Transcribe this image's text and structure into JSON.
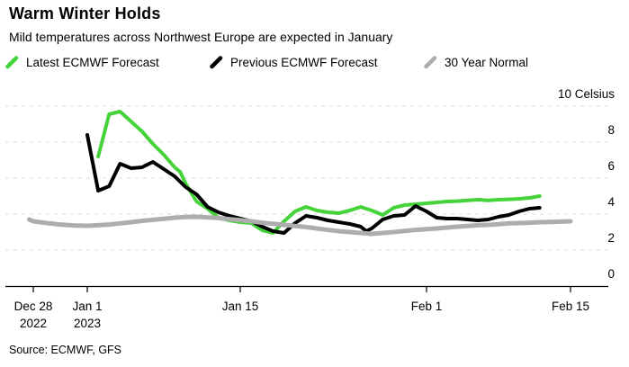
{
  "header": {
    "title": "Warm Winter Holds",
    "subtitle": "Mild temperatures across Northwest Europe are expected in January"
  },
  "legend": {
    "items": [
      {
        "label": "Latest ECMWF Forecast",
        "color": "#45d33a"
      },
      {
        "label": "Previous ECMWF Forecast",
        "color": "#000000"
      },
      {
        "label": "30 Year Normal",
        "color": "#adadad"
      }
    ]
  },
  "footer": {
    "source": "Source: ECMWF, GFS"
  },
  "chart_data": {
    "type": "line",
    "title": "Warm Winter Holds",
    "subtitle": "Mild temperatures across Northwest Europe are expected in January",
    "ylabel": "Celsius",
    "ylim": [
      0,
      10
    ],
    "grid": "horizontal-dashed",
    "legend_position": "top-left",
    "yticks": [
      {
        "value": 10,
        "label": "10 Celsius"
      },
      {
        "value": 8,
        "label": "8"
      },
      {
        "value": 6,
        "label": "6"
      },
      {
        "value": 4,
        "label": "4"
      },
      {
        "value": 2,
        "label": "2"
      },
      {
        "value": 0,
        "label": "0"
      }
    ],
    "x_unit": "days since Dec 28 2022",
    "xticks": [
      {
        "day": 0,
        "label": "Dec 28",
        "sublabel": "2022"
      },
      {
        "day": 4,
        "label": "Jan 1",
        "sublabel": "2023"
      },
      {
        "day": 18,
        "label": "Jan 15"
      },
      {
        "day": 35,
        "label": "Feb 1"
      },
      {
        "day": 49,
        "label": "Feb 15"
      }
    ],
    "series": [
      {
        "name": "Latest ECMWF Forecast",
        "color": "#45d33a",
        "width": 4,
        "points": [
          [
            5,
            7.2
          ],
          [
            6,
            9.55
          ],
          [
            7,
            9.7
          ],
          [
            8,
            9.15
          ],
          [
            9,
            8.6
          ],
          [
            10,
            7.9
          ],
          [
            11,
            7.3
          ],
          [
            12,
            6.6
          ],
          [
            12.5,
            6.35
          ],
          [
            13,
            5.7
          ],
          [
            14,
            4.7
          ],
          [
            15,
            4.3
          ],
          [
            16,
            3.8
          ],
          [
            17,
            3.65
          ],
          [
            18,
            3.55
          ],
          [
            19,
            3.5
          ],
          [
            20,
            3.1
          ],
          [
            21,
            2.95
          ],
          [
            22,
            3.6
          ],
          [
            23,
            4.15
          ],
          [
            24,
            4.4
          ],
          [
            25,
            4.2
          ],
          [
            26,
            4.1
          ],
          [
            27,
            4.05
          ],
          [
            28,
            4.2
          ],
          [
            29,
            4.4
          ],
          [
            30,
            4.2
          ],
          [
            31,
            3.95
          ],
          [
            32,
            4.35
          ],
          [
            33,
            4.5
          ],
          [
            34,
            4.55
          ],
          [
            35,
            4.6
          ],
          [
            36,
            4.65
          ],
          [
            37,
            4.7
          ],
          [
            38,
            4.72
          ],
          [
            39,
            4.76
          ],
          [
            40,
            4.8
          ],
          [
            41,
            4.76
          ],
          [
            42,
            4.8
          ],
          [
            43,
            4.82
          ],
          [
            44,
            4.85
          ],
          [
            45,
            4.9
          ],
          [
            46,
            5.0
          ]
        ]
      },
      {
        "name": "Previous ECMWF Forecast",
        "color": "#000000",
        "width": 4,
        "points": [
          [
            4,
            8.4
          ],
          [
            5,
            5.3
          ],
          [
            6,
            5.55
          ],
          [
            7,
            6.8
          ],
          [
            8,
            6.55
          ],
          [
            9,
            6.6
          ],
          [
            10,
            6.9
          ],
          [
            11,
            6.5
          ],
          [
            12,
            6.1
          ],
          [
            13,
            5.5
          ],
          [
            14,
            5.1
          ],
          [
            15,
            4.4
          ],
          [
            16,
            4.1
          ],
          [
            17,
            3.9
          ],
          [
            18,
            3.75
          ],
          [
            19,
            3.6
          ],
          [
            20,
            3.3
          ],
          [
            21,
            3.05
          ],
          [
            22,
            2.95
          ],
          [
            23,
            3.5
          ],
          [
            24,
            3.9
          ],
          [
            25,
            3.8
          ],
          [
            26,
            3.65
          ],
          [
            27,
            3.55
          ],
          [
            28,
            3.45
          ],
          [
            29,
            3.3
          ],
          [
            29.5,
            3.05
          ],
          [
            30,
            3.2
          ],
          [
            31,
            3.7
          ],
          [
            32,
            3.9
          ],
          [
            33,
            3.95
          ],
          [
            34,
            4.45
          ],
          [
            35,
            4.15
          ],
          [
            36,
            3.8
          ],
          [
            37,
            3.75
          ],
          [
            38,
            3.75
          ],
          [
            39,
            3.7
          ],
          [
            40,
            3.65
          ],
          [
            41,
            3.7
          ],
          [
            42,
            3.85
          ],
          [
            43,
            3.95
          ],
          [
            44,
            4.15
          ],
          [
            45,
            4.3
          ],
          [
            46,
            4.35
          ]
        ]
      },
      {
        "name": "30 Year Normal",
        "color": "#adadad",
        "width": 5,
        "points": [
          [
            -0.3,
            3.7
          ],
          [
            0,
            3.6
          ],
          [
            1,
            3.5
          ],
          [
            2,
            3.42
          ],
          [
            3,
            3.37
          ],
          [
            4,
            3.35
          ],
          [
            5,
            3.38
          ],
          [
            6,
            3.42
          ],
          [
            7,
            3.48
          ],
          [
            8,
            3.55
          ],
          [
            9,
            3.62
          ],
          [
            10,
            3.68
          ],
          [
            11,
            3.74
          ],
          [
            12,
            3.8
          ],
          [
            13,
            3.84
          ],
          [
            14,
            3.85
          ],
          [
            15,
            3.82
          ],
          [
            16,
            3.78
          ],
          [
            17,
            3.72
          ],
          [
            18,
            3.66
          ],
          [
            19,
            3.6
          ],
          [
            20,
            3.52
          ],
          [
            21,
            3.46
          ],
          [
            22,
            3.4
          ],
          [
            23,
            3.34
          ],
          [
            24,
            3.28
          ],
          [
            25,
            3.2
          ],
          [
            26,
            3.12
          ],
          [
            27,
            3.05
          ],
          [
            28,
            3.0
          ],
          [
            29,
            2.95
          ],
          [
            30,
            2.9
          ],
          [
            31,
            2.95
          ],
          [
            32,
            3.0
          ],
          [
            33,
            3.06
          ],
          [
            34,
            3.12
          ],
          [
            35,
            3.16
          ],
          [
            36,
            3.2
          ],
          [
            37,
            3.25
          ],
          [
            38,
            3.3
          ],
          [
            39,
            3.34
          ],
          [
            40,
            3.38
          ],
          [
            41,
            3.4
          ],
          [
            42,
            3.44
          ],
          [
            43,
            3.48
          ],
          [
            44,
            3.5
          ],
          [
            45,
            3.52
          ],
          [
            46,
            3.55
          ],
          [
            47,
            3.56
          ],
          [
            48,
            3.58
          ],
          [
            49,
            3.6
          ]
        ]
      }
    ]
  }
}
